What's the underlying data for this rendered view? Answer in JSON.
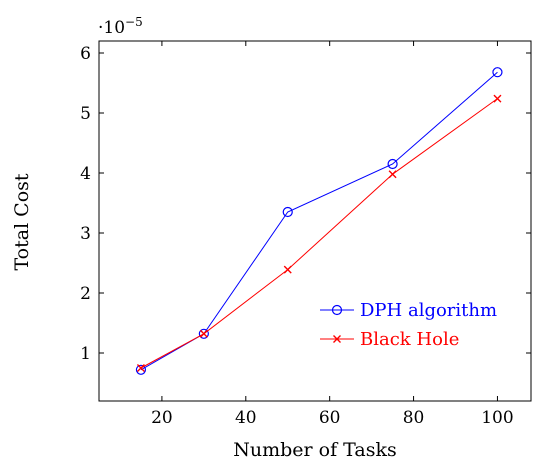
{
  "chart_data": {
    "type": "line",
    "title": "",
    "xlabel": "Number of Tasks",
    "ylabel": "Total Cost",
    "y_scale_label": "·10",
    "y_scale_exponent": "−5",
    "xlim": [
      5,
      108
    ],
    "ylim": [
      0.2,
      6.2
    ],
    "xticks": [
      20,
      40,
      60,
      80,
      100
    ],
    "yticks": [
      1,
      2,
      3,
      4,
      5,
      6
    ],
    "grid": false,
    "legend_position": "lower-right",
    "series": [
      {
        "name": "DPH algorithm",
        "color": "#0000ff",
        "marker": "circle",
        "x": [
          15,
          30,
          50,
          75,
          100
        ],
        "y": [
          0.72,
          1.32,
          3.35,
          4.15,
          5.68
        ]
      },
      {
        "name": "Black Hole",
        "color": "#ff0000",
        "marker": "x",
        "x": [
          15,
          30,
          50,
          75,
          100
        ],
        "y": [
          0.75,
          1.32,
          2.39,
          3.98,
          5.24
        ]
      }
    ]
  }
}
